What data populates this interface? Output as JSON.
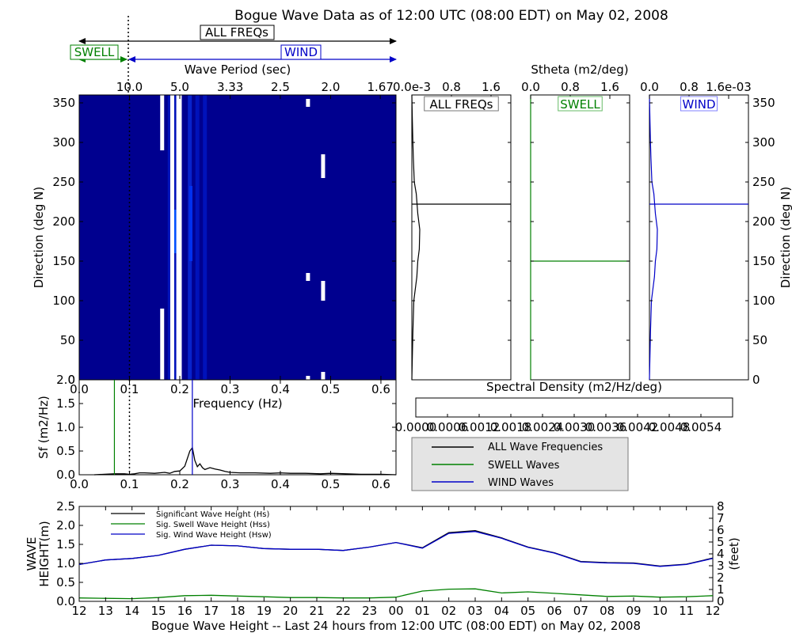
{
  "title": "Bogue Wave Data as of 12:00 UTC (08:00 EDT) on May 02, 2008",
  "band_labels": {
    "all": "ALL FREQs",
    "swell": "SWELL",
    "wind": "WIND"
  },
  "colors": {
    "all": "#000000",
    "swell": "#008000",
    "wind": "#0000c8",
    "heatmap_background": "#00008f"
  },
  "chart_data": [
    {
      "id": "direction_heatmap",
      "type": "heatmap",
      "xlabel": "Frequency (Hz)",
      "ylabel": "Direction (deg N)",
      "top_axis_label": "Wave Period (sec)",
      "top_tick_labels": [
        "10.0",
        "5.0",
        "3.33",
        "2.5",
        "2.0",
        "1.67"
      ],
      "xlim": [
        0.0,
        0.63
      ],
      "ylim": [
        0,
        360
      ],
      "xticks": [
        "0.0",
        "0.1",
        "0.2",
        "0.3",
        "0.4",
        "0.5",
        "0.6"
      ],
      "yticks": [
        "0",
        "50",
        "100",
        "150",
        "200",
        "250",
        "300",
        "350"
      ],
      "swell_wind_split_freq": 0.1,
      "bright_energy_bands_hz": [
        0.18,
        0.19,
        0.22,
        0.235,
        0.25
      ],
      "missing_data_columns": [
        {
          "freq": 0.165,
          "dir_ranges": [
            [
              0,
              90
            ],
            [
              290,
              360
            ]
          ]
        },
        {
          "freq": 0.185,
          "dir_ranges": [
            [
              0,
              360
            ]
          ]
        },
        {
          "freq": 0.197,
          "dir_ranges": [
            [
              0,
              360
            ]
          ]
        },
        {
          "freq": 0.2,
          "dir_ranges": [
            [
              0,
              360
            ]
          ]
        },
        {
          "freq": 0.455,
          "dir_ranges": [
            [
              0,
              5
            ],
            [
              125,
              135
            ],
            [
              345,
              355
            ]
          ]
        },
        {
          "freq": 0.485,
          "dir_ranges": [
            [
              0,
              10
            ],
            [
              100,
              125
            ],
            [
              255,
              285
            ]
          ]
        }
      ]
    },
    {
      "id": "stheta_all",
      "type": "line",
      "panel_label": "ALL FREQs",
      "shared_top_label": "Stheta (m2/deg)",
      "top_tick_labels": [
        "0.0e-3",
        "0.8",
        "1.6"
      ],
      "xlim": [
        0,
        0.002
      ],
      "ylim": [
        0,
        360
      ],
      "peak_direction": 222,
      "curve": [
        [
          0,
          0
        ],
        [
          2e-05,
          60
        ],
        [
          4e-05,
          100
        ],
        [
          0.0001,
          130
        ],
        [
          0.00012,
          150
        ],
        [
          0.00015,
          165
        ],
        [
          0.00016,
          190
        ],
        [
          0.00012,
          210
        ],
        [
          9e-05,
          235
        ],
        [
          5e-05,
          250
        ],
        [
          3e-05,
          280
        ],
        [
          2e-05,
          300
        ],
        [
          1e-05,
          330
        ],
        [
          0,
          360
        ]
      ]
    },
    {
      "id": "stheta_swell",
      "type": "line",
      "panel_label": "SWELL",
      "top_tick_labels": [
        "0.0",
        "0.8",
        "1.6"
      ],
      "xlim": [
        0,
        0.002
      ],
      "ylim": [
        0,
        360
      ],
      "peak_direction": 150
    },
    {
      "id": "stheta_wind",
      "type": "line",
      "panel_label": "WIND",
      "top_tick_labels": [
        "0.0",
        "0.8",
        "1.6e-03"
      ],
      "ylabel": "Direction (deg N)",
      "yticks": [
        "0",
        "50",
        "100",
        "150",
        "200",
        "250",
        "300",
        "350"
      ],
      "xlim": [
        0,
        0.002
      ],
      "ylim": [
        0,
        360
      ],
      "peak_direction": 222,
      "curve": [
        [
          0,
          0
        ],
        [
          2e-05,
          60
        ],
        [
          4e-05,
          100
        ],
        [
          0.0001,
          130
        ],
        [
          0.00012,
          150
        ],
        [
          0.00015,
          165
        ],
        [
          0.00016,
          190
        ],
        [
          0.00012,
          210
        ],
        [
          9e-05,
          235
        ],
        [
          5e-05,
          250
        ],
        [
          3e-05,
          280
        ],
        [
          2e-05,
          300
        ],
        [
          1e-05,
          330
        ],
        [
          0,
          360
        ]
      ]
    },
    {
      "id": "colorbar",
      "type": "heatmap",
      "title": "Spectral Density (m2/Hz/deg)",
      "range": [
        0.0,
        0.006
      ],
      "tick_labels": [
        "0.0000",
        "0.0006",
        "0.0012",
        "0.0018",
        "0.0024",
        "0.0030",
        "0.0036",
        "0.0042",
        "0.0048",
        "0.0054"
      ],
      "colormap": [
        "#00007f",
        "#0000ff",
        "#0080ff",
        "#00ffff",
        "#7dff7a",
        "#ffff00",
        "#ff8c00",
        "#ff1000",
        "#7f0000"
      ]
    },
    {
      "id": "spectrum",
      "type": "line",
      "ylabel": "Sf (m2/Hz)",
      "xlim": [
        0.0,
        0.63
      ],
      "ylim": [
        0.0,
        2.0
      ],
      "xticks": [
        "0.0",
        "0.1",
        "0.2",
        "0.3",
        "0.4",
        "0.5",
        "0.6"
      ],
      "yticks": [
        "0.0",
        "0.5",
        "1.0",
        "1.5",
        "2.0"
      ],
      "swell_peak_freq": 0.07,
      "wind_peak_freq": 0.225,
      "split_freq": 0.1,
      "x": [
        0.03,
        0.05,
        0.07,
        0.09,
        0.1,
        0.11,
        0.12,
        0.13,
        0.15,
        0.17,
        0.18,
        0.19,
        0.2,
        0.21,
        0.22,
        0.225,
        0.23,
        0.235,
        0.24,
        0.245,
        0.25,
        0.26,
        0.27,
        0.28,
        0.29,
        0.3,
        0.32,
        0.35,
        0.38,
        0.4,
        0.42,
        0.45,
        0.48,
        0.5,
        0.53,
        0.56,
        0.6,
        0.63
      ],
      "values": [
        0.0,
        0.01,
        0.02,
        0.02,
        0.01,
        0.02,
        0.04,
        0.04,
        0.03,
        0.05,
        0.03,
        0.07,
        0.08,
        0.18,
        0.5,
        0.57,
        0.3,
        0.17,
        0.23,
        0.15,
        0.11,
        0.15,
        0.12,
        0.1,
        0.07,
        0.05,
        0.04,
        0.04,
        0.03,
        0.04,
        0.03,
        0.03,
        0.02,
        0.03,
        0.02,
        0.01,
        0.01,
        0.0
      ]
    },
    {
      "id": "wave_height",
      "type": "line",
      "xlabel": "Bogue Wave Height -- Last 24 hours from 12:00 UTC (08:00 EDT) on May 02, 2008",
      "ylabel_lines": [
        "WAVE",
        "HEIGHT(m)"
      ],
      "ylabel_right": "(feet)",
      "categories": [
        "12",
        "13",
        "14",
        "15",
        "16",
        "17",
        "18",
        "19",
        "20",
        "21",
        "22",
        "23",
        "00",
        "01",
        "02",
        "03",
        "04",
        "05",
        "06",
        "07",
        "08",
        "09",
        "10",
        "11",
        "12"
      ],
      "ylim": [
        0.0,
        2.5
      ],
      "yticks": [
        "0.0",
        "0.5",
        "1.0",
        "1.5",
        "2.0",
        "2.5"
      ],
      "ylim_right": [
        0,
        8
      ],
      "yticks_right": [
        "0",
        "1",
        "2",
        "3",
        "4",
        "5",
        "6",
        "7",
        "8"
      ],
      "series": [
        {
          "name": "Significant Wave Height (Hs)",
          "color": "#000000",
          "values": [
            0.97,
            1.09,
            1.13,
            1.21,
            1.37,
            1.48,
            1.46,
            1.39,
            1.37,
            1.37,
            1.34,
            1.43,
            1.55,
            1.41,
            1.81,
            1.86,
            1.67,
            1.43,
            1.28,
            1.05,
            1.02,
            1.01,
            0.93,
            0.98,
            1.14
          ]
        },
        {
          "name": "Sig. Swell Wave Height (Hss)",
          "color": "#008000",
          "values": [
            0.09,
            0.08,
            0.07,
            0.1,
            0.15,
            0.16,
            0.14,
            0.12,
            0.1,
            0.1,
            0.09,
            0.09,
            0.11,
            0.27,
            0.32,
            0.33,
            0.22,
            0.25,
            0.21,
            0.17,
            0.13,
            0.14,
            0.11,
            0.12,
            0.15
          ]
        },
        {
          "name": "Sig. Wind Wave Height (Hsw)",
          "color": "#0000c8",
          "values": [
            0.97,
            1.09,
            1.13,
            1.21,
            1.37,
            1.48,
            1.46,
            1.39,
            1.37,
            1.37,
            1.34,
            1.43,
            1.55,
            1.4,
            1.79,
            1.84,
            1.66,
            1.42,
            1.27,
            1.04,
            1.01,
            1.0,
            0.92,
            0.97,
            1.13
          ]
        }
      ]
    }
  ],
  "legend_spectrum": [
    {
      "label": "ALL Wave Frequencies",
      "color": "#000000"
    },
    {
      "label": "SWELL Waves",
      "color": "#008000"
    },
    {
      "label": "WIND Waves",
      "color": "#0000c8"
    }
  ]
}
